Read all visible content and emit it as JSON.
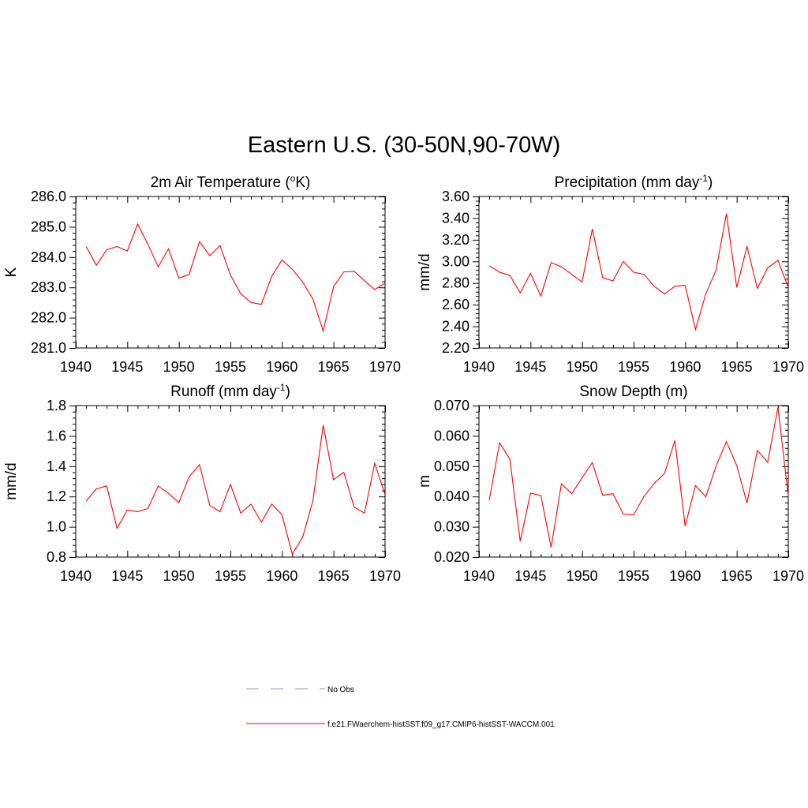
{
  "figure": {
    "title": "Eastern U.S. (30-50N,90-70W)"
  },
  "legend": [
    {
      "label": "No Obs",
      "color": "#9999dd",
      "dash": true
    },
    {
      "label": "f.e21.FWaerchem-histSST.f09_g17.CMIP6-histSST-WACCM.001",
      "color": "#ff0000",
      "dash": false
    }
  ],
  "chart_data": [
    {
      "type": "line",
      "title_main": "2m Air Temperature (",
      "title_sup": "o",
      "title_tail": "K)",
      "ylabel": "K",
      "xlim": [
        1940,
        1970
      ],
      "ylim": [
        281.0,
        286.0
      ],
      "xticks": [
        1940,
        1945,
        1950,
        1955,
        1960,
        1965,
        1970
      ],
      "yticks": [
        "281.0",
        "282.0",
        "283.0",
        "284.0",
        "285.0",
        "286.0"
      ],
      "color": "#ff0000",
      "x": [
        1941,
        1942,
        1943,
        1944,
        1945,
        1946,
        1947,
        1948,
        1949,
        1950,
        1951,
        1952,
        1953,
        1954,
        1955,
        1956,
        1957,
        1958,
        1959,
        1960,
        1961,
        1962,
        1963,
        1964,
        1965,
        1966,
        1967,
        1968,
        1969,
        1970
      ],
      "y": [
        284.35,
        283.73,
        284.24,
        284.35,
        284.2,
        285.09,
        284.42,
        283.68,
        284.27,
        283.3,
        283.43,
        284.51,
        284.05,
        284.38,
        283.41,
        282.79,
        282.5,
        282.44,
        283.36,
        283.91,
        283.6,
        283.18,
        282.62,
        281.56,
        283.02,
        283.51,
        283.53,
        283.22,
        282.93,
        283.14
      ]
    },
    {
      "type": "line",
      "title_main": "Precipitation (mm day",
      "title_sup": "-1",
      "title_tail": ")",
      "ylabel": "mm/d",
      "xlim": [
        1940,
        1970
      ],
      "ylim": [
        2.2,
        3.6
      ],
      "xticks": [
        1940,
        1945,
        1950,
        1955,
        1960,
        1965,
        1970
      ],
      "yticks": [
        "2.20",
        "2.40",
        "2.60",
        "2.80",
        "3.00",
        "3.20",
        "3.40",
        "3.60"
      ],
      "color": "#ff0000",
      "x": [
        1941,
        1942,
        1943,
        1944,
        1945,
        1946,
        1947,
        1948,
        1949,
        1950,
        1951,
        1952,
        1953,
        1954,
        1955,
        1956,
        1957,
        1958,
        1959,
        1960,
        1961,
        1962,
        1963,
        1964,
        1965,
        1966,
        1967,
        1968,
        1969,
        1970
      ],
      "y": [
        2.96,
        2.9,
        2.87,
        2.71,
        2.89,
        2.68,
        2.99,
        2.95,
        2.88,
        2.81,
        3.3,
        2.85,
        2.82,
        3.0,
        2.9,
        2.88,
        2.77,
        2.7,
        2.77,
        2.78,
        2.37,
        2.7,
        2.92,
        3.44,
        2.76,
        3.14,
        2.75,
        2.94,
        3.01,
        2.76
      ]
    },
    {
      "type": "line",
      "title_main": "Runoff (mm day",
      "title_sup": "-1",
      "title_tail": ")",
      "ylabel": "mm/d",
      "xlim": [
        1940,
        1970
      ],
      "ylim": [
        0.8,
        1.8
      ],
      "xticks": [
        1940,
        1945,
        1950,
        1955,
        1960,
        1965,
        1970
      ],
      "yticks": [
        "0.8",
        "1.0",
        "1.2",
        "1.4",
        "1.6",
        "1.8"
      ],
      "color": "#ff0000",
      "x": [
        1941,
        1942,
        1943,
        1944,
        1945,
        1946,
        1947,
        1948,
        1949,
        1950,
        1951,
        1952,
        1953,
        1954,
        1955,
        1956,
        1957,
        1958,
        1959,
        1960,
        1961,
        1962,
        1963,
        1964,
        1965,
        1966,
        1967,
        1968,
        1969,
        1970
      ],
      "y": [
        1.17,
        1.25,
        1.27,
        0.99,
        1.11,
        1.1,
        1.12,
        1.27,
        1.22,
        1.16,
        1.33,
        1.41,
        1.14,
        1.1,
        1.28,
        1.09,
        1.15,
        1.03,
        1.15,
        1.08,
        0.82,
        0.93,
        1.17,
        1.67,
        1.31,
        1.36,
        1.13,
        1.09,
        1.42,
        1.21
      ]
    },
    {
      "type": "line",
      "title_main": "Snow Depth (m)",
      "title_sup": "",
      "title_tail": "",
      "ylabel": "m",
      "xlim": [
        1940,
        1970
      ],
      "ylim": [
        0.02,
        0.07
      ],
      "xticks": [
        1940,
        1945,
        1950,
        1955,
        1960,
        1965,
        1970
      ],
      "yticks": [
        "0.020",
        "0.030",
        "0.040",
        "0.050",
        "0.060",
        "0.070"
      ],
      "color": "#ff0000",
      "x": [
        1941,
        1942,
        1943,
        1944,
        1945,
        1946,
        1947,
        1948,
        1949,
        1950,
        1951,
        1952,
        1953,
        1954,
        1955,
        1956,
        1957,
        1958,
        1959,
        1960,
        1961,
        1962,
        1963,
        1964,
        1965,
        1966,
        1967,
        1968,
        1969,
        1970
      ],
      "y": [
        0.0388,
        0.0577,
        0.0523,
        0.0252,
        0.0411,
        0.0403,
        0.0232,
        0.0442,
        0.0409,
        0.0462,
        0.0512,
        0.0404,
        0.0409,
        0.0342,
        0.0339,
        0.04,
        0.0443,
        0.0476,
        0.0585,
        0.0302,
        0.0436,
        0.0399,
        0.05,
        0.0581,
        0.0502,
        0.0378,
        0.0552,
        0.0513,
        0.0694,
        0.0402
      ]
    }
  ]
}
